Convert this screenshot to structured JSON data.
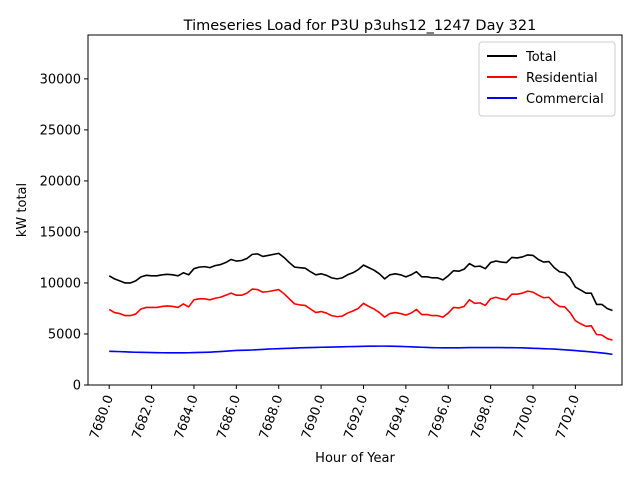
{
  "chart_data": {
    "type": "line",
    "title": "Timeseries Load for P3U p3uhs12_1247  Day 321",
    "xlabel": "Hour of Year",
    "ylabel": "kW total",
    "xlim": [
      7679.0,
      7704.2
    ],
    "ylim": [
      0,
      34300
    ],
    "xticks": [
      7680,
      7682,
      7684,
      7686,
      7688,
      7690,
      7692,
      7694,
      7696,
      7698,
      7700,
      7702
    ],
    "xtick_labels": [
      "7680.0",
      "7682.0",
      "7684.0",
      "7686.0",
      "7688.0",
      "7690.0",
      "7692.0",
      "7694.0",
      "7696.0",
      "7698.0",
      "7700.0",
      "7702.0"
    ],
    "yticks": [
      0,
      5000,
      10000,
      15000,
      20000,
      25000,
      30000
    ],
    "ytick_labels": [
      "0",
      "5000",
      "10000",
      "15000",
      "20000",
      "25000",
      "30000"
    ],
    "legend_position": "top-right",
    "series": [
      {
        "name": "Total",
        "color": "#000000",
        "x_start": 7680,
        "x_step": 0.25,
        "values": [
          10700,
          10400,
          10200,
          10000,
          10000,
          10200,
          10600,
          10750,
          10700,
          10700,
          10800,
          10850,
          10800,
          10700,
          11000,
          10800,
          11400,
          11550,
          11600,
          11500,
          11700,
          11800,
          12000,
          12300,
          12150,
          12200,
          12400,
          12800,
          12850,
          12600,
          12700,
          12800,
          12900,
          12500,
          12000,
          11550,
          11500,
          11450,
          11100,
          10800,
          10900,
          10750,
          10500,
          10400,
          10500,
          10800,
          11000,
          11300,
          11750,
          11500,
          11250,
          10900,
          10400,
          10800,
          10900,
          10800,
          10600,
          10800,
          11100,
          10600,
          10600,
          10500,
          10500,
          10300,
          10700,
          11200,
          11150,
          11350,
          11900,
          11600,
          11650,
          11400,
          12000,
          12150,
          12050,
          12000,
          12500,
          12450,
          12550,
          12750,
          12700,
          12300,
          12050,
          12100,
          11500,
          11100,
          11000,
          10500,
          9600,
          9300,
          9000,
          9000,
          7900,
          7900,
          7500,
          7300
        ]
      },
      {
        "name": "Residential",
        "color": "#ff0000",
        "x_start": 7680,
        "x_step": 0.25,
        "values": [
          7400,
          7100,
          7000,
          6800,
          6800,
          6950,
          7450,
          7600,
          7600,
          7600,
          7700,
          7750,
          7700,
          7600,
          7950,
          7650,
          8350,
          8450,
          8450,
          8350,
          8500,
          8600,
          8800,
          9000,
          8800,
          8800,
          9000,
          9400,
          9350,
          9100,
          9150,
          9250,
          9350,
          8950,
          8450,
          7950,
          7850,
          7800,
          7450,
          7100,
          7200,
          7050,
          6800,
          6700,
          6750,
          7050,
          7250,
          7500,
          8000,
          7700,
          7450,
          7100,
          6650,
          7000,
          7100,
          7000,
          6850,
          7050,
          7400,
          6900,
          6900,
          6800,
          6800,
          6650,
          7050,
          7600,
          7550,
          7700,
          8350,
          8000,
          8050,
          7800,
          8450,
          8600,
          8450,
          8350,
          8900,
          8900,
          9000,
          9200,
          9100,
          8800,
          8550,
          8600,
          8050,
          7700,
          7650,
          7100,
          6300,
          6000,
          5750,
          5800,
          4950,
          4900,
          4550,
          4400
        ]
      },
      {
        "name": "Commercial",
        "color": "#0000ff",
        "x_start": 7680,
        "x_step": 0.25,
        "values": [
          3300,
          3290,
          3270,
          3250,
          3230,
          3210,
          3200,
          3190,
          3180,
          3170,
          3160,
          3150,
          3150,
          3150,
          3150,
          3160,
          3180,
          3190,
          3200,
          3220,
          3250,
          3280,
          3310,
          3350,
          3390,
          3400,
          3410,
          3430,
          3460,
          3490,
          3520,
          3540,
          3560,
          3580,
          3600,
          3620,
          3640,
          3660,
          3670,
          3680,
          3700,
          3710,
          3720,
          3730,
          3740,
          3760,
          3770,
          3780,
          3790,
          3800,
          3800,
          3810,
          3810,
          3800,
          3790,
          3780,
          3760,
          3740,
          3720,
          3700,
          3680,
          3660,
          3650,
          3640,
          3640,
          3640,
          3640,
          3660,
          3670,
          3670,
          3670,
          3670,
          3670,
          3670,
          3670,
          3660,
          3660,
          3650,
          3640,
          3620,
          3600,
          3580,
          3560,
          3540,
          3520,
          3490,
          3450,
          3410,
          3370,
          3330,
          3290,
          3240,
          3190,
          3140,
          3080,
          3000
        ]
      }
    ]
  }
}
